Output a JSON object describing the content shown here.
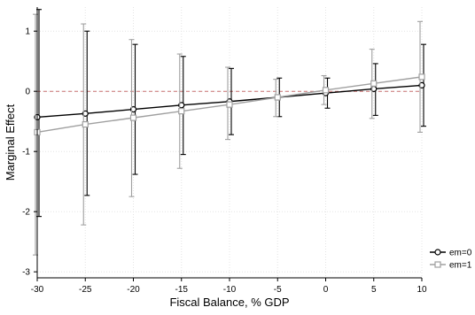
{
  "chart_data": {
    "type": "line",
    "xlabel": "Fiscal Balance, % GDP",
    "ylabel": "Marginal Effect",
    "x": [
      -30,
      -25,
      -20,
      -15,
      -10,
      -5,
      0,
      5,
      10
    ],
    "xticks": [
      "-30",
      "-25",
      "-20",
      "-15",
      "-10",
      "-5",
      "0",
      "5",
      "10"
    ],
    "yticks": [
      "1",
      "0",
      "-1",
      "-2",
      "-3"
    ],
    "xlim": [
      -30,
      10
    ],
    "ylim": [
      -3.1,
      1.4
    ],
    "grid": true,
    "reference_line": 0,
    "legend_position": "right",
    "series": [
      {
        "name": "em=0",
        "color": "#000000",
        "marker": "circle",
        "values": [
          -0.43,
          -0.37,
          -0.3,
          -0.23,
          -0.17,
          -0.1,
          -0.03,
          0.04,
          0.1
        ],
        "ci_low": [
          -2.08,
          -1.73,
          -1.38,
          -1.05,
          -0.72,
          -0.42,
          -0.28,
          -0.4,
          -0.58
        ],
        "ci_high": [
          1.36,
          1.0,
          0.78,
          0.58,
          0.38,
          0.22,
          0.22,
          0.46,
          0.78
        ]
      },
      {
        "name": "em=1",
        "color": "#a0a0a0",
        "marker": "square",
        "values": [
          -0.68,
          -0.55,
          -0.44,
          -0.33,
          -0.22,
          -0.1,
          0.02,
          0.13,
          0.24
        ],
        "ci_low": [
          -2.72,
          -2.22,
          -1.75,
          -1.28,
          -0.8,
          -0.42,
          -0.22,
          -0.45,
          -0.68
        ],
        "ci_high": [
          1.28,
          1.12,
          0.86,
          0.62,
          0.4,
          0.2,
          0.26,
          0.7,
          1.16
        ]
      }
    ]
  }
}
